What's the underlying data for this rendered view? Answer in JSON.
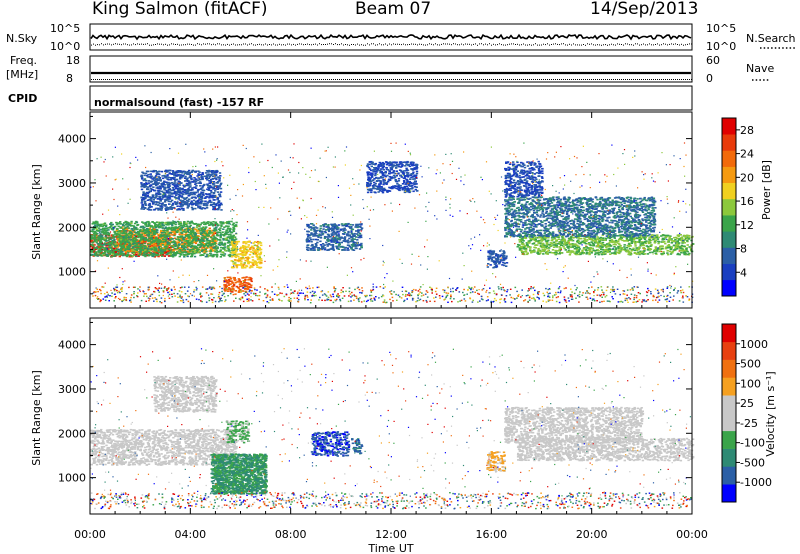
{
  "header": {
    "station": "King Salmon (fitACF)",
    "beam": "Beam 07",
    "date": "14/Sep/2013"
  },
  "panel_labels": {
    "nsky": "N.Sky",
    "nsearch": "N.Search",
    "freq": "Freq.",
    "freq_unit": "[MHz]",
    "cpid": "CPID",
    "nave": "Nave",
    "mode": "normalsound (fast) -157 RF"
  },
  "mini_ticks": {
    "nsky_top": "10^5",
    "nsky_bottom": "10^0",
    "nsearch_top": "10^5",
    "nsearch_bottom": "10^0",
    "freq_top": "18",
    "freq_bottom": "8",
    "nave_top": "60",
    "nave_bottom": "0"
  },
  "colors": {
    "power": [
      "#0000ff",
      "#1a3fc0",
      "#2b5fa6",
      "#2e8a74",
      "#3aa44a",
      "#8cc83c",
      "#f0d020",
      "#f59a10",
      "#f26a0a",
      "#e83a0a",
      "#e00000"
    ],
    "velocity": [
      "#0000ff",
      "#2b5fa6",
      "#2e8a74",
      "#3aa44a",
      "#c8c8c8",
      "#c8c8c8",
      "#f5a020",
      "#f07010",
      "#e84010",
      "#e00000"
    ]
  },
  "chart_data": [
    {
      "type": "heatmap",
      "name": "power",
      "ylabel": "Slant Range [km]",
      "yticks": [
        "1000",
        "2000",
        "3000",
        "4000"
      ],
      "ylim": [
        180,
        4600
      ],
      "xlim": [
        0,
        24
      ],
      "colorbar_label": "Power [dB]",
      "colorbar_ticks": [
        "4",
        "8",
        "12",
        "16",
        "20",
        "24",
        "28"
      ],
      "scale_range": [
        0,
        30
      ],
      "features": [
        {
          "t0": 0.0,
          "t1": 3.2,
          "r0": 1350,
          "r1": 1850,
          "value": 27
        },
        {
          "t0": 1.0,
          "t1": 5.0,
          "r0": 1450,
          "r1": 2000,
          "value": 21
        },
        {
          "t0": 0.0,
          "t1": 5.8,
          "r0": 1350,
          "r1": 2150,
          "value": 12
        },
        {
          "t0": 5.6,
          "t1": 6.8,
          "r0": 1100,
          "r1": 1700,
          "value": 18
        },
        {
          "t0": 5.3,
          "t1": 6.4,
          "r0": 550,
          "r1": 900,
          "value": 24
        },
        {
          "t0": 2.0,
          "t1": 5.2,
          "r0": 2400,
          "r1": 3300,
          "value": 6
        },
        {
          "t0": 8.6,
          "t1": 10.8,
          "r0": 1500,
          "r1": 2100,
          "value": 7
        },
        {
          "t0": 11.0,
          "t1": 13.0,
          "r0": 2800,
          "r1": 3500,
          "value": 5
        },
        {
          "t0": 15.8,
          "t1": 16.6,
          "r0": 1100,
          "r1": 1500,
          "value": 6
        },
        {
          "t0": 17.0,
          "t1": 24.0,
          "r0": 1400,
          "r1": 1850,
          "value": 14
        },
        {
          "t0": 16.5,
          "t1": 22.5,
          "r0": 1800,
          "r1": 2700,
          "value": 8
        },
        {
          "t0": 16.5,
          "t1": 18.0,
          "r0": 2700,
          "r1": 3500,
          "value": 5
        }
      ]
    },
    {
      "type": "heatmap",
      "name": "velocity",
      "ylabel": "Slant Range [km]",
      "yticks": [
        "1000",
        "2000",
        "3000",
        "4000"
      ],
      "ylim": [
        180,
        4600
      ],
      "xlim": [
        0,
        24
      ],
      "xlabel": "Time UT",
      "xticks": [
        "00:00",
        "04:00",
        "08:00",
        "12:00",
        "16:00",
        "20:00",
        "00:00"
      ],
      "colorbar_label": "Velocity [m s⁻¹]",
      "colorbar_ticks": [
        "1000",
        "500",
        "100",
        "25",
        "-25",
        "-100",
        "-500",
        "-1000"
      ],
      "scale_range": [
        -1200,
        1200
      ],
      "features": [
        {
          "t0": 0.0,
          "t1": 5.8,
          "r0": 1300,
          "r1": 2100,
          "value": 0
        },
        {
          "t0": 5.4,
          "t1": 6.3,
          "r0": 1800,
          "r1": 2300,
          "value": -300
        },
        {
          "t0": 4.8,
          "t1": 7.0,
          "r0": 650,
          "r1": 1550,
          "value": -500
        },
        {
          "t0": 4.8,
          "t1": 7.0,
          "r0": 650,
          "r1": 1550,
          "value": -500
        },
        {
          "t0": 8.8,
          "t1": 10.3,
          "r0": 1500,
          "r1": 2050,
          "value": -900
        },
        {
          "t0": 10.4,
          "t1": 10.8,
          "r0": 1550,
          "r1": 1900,
          "value": -800
        },
        {
          "t0": 15.8,
          "t1": 16.5,
          "r0": 1150,
          "r1": 1600,
          "value": 300
        },
        {
          "t0": 17.0,
          "t1": 24.0,
          "r0": 1400,
          "r1": 1900,
          "value": 0
        },
        {
          "t0": 16.5,
          "t1": 22.0,
          "r0": 1800,
          "r1": 2600,
          "value": 0
        },
        {
          "t0": 2.5,
          "t1": 5.0,
          "r0": 2500,
          "r1": 3300,
          "value": -80
        }
      ]
    }
  ]
}
